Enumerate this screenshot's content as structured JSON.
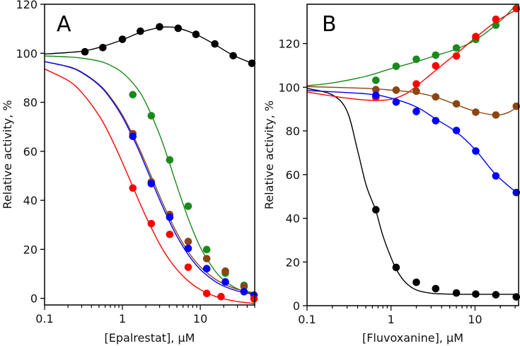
{
  "chart_data": [
    {
      "type": "scatter",
      "panel_label": "A",
      "xlabel": "[Epalrestat], µM",
      "ylabel": "Relative activity, %",
      "xscale": "log",
      "xlim": [
        0.1,
        50
      ],
      "ylim": [
        -2.7,
        120
      ],
      "xticks": [
        0.1,
        1,
        10
      ],
      "xtick_labels": [
        "0.1",
        "1",
        "10"
      ],
      "yticks": [
        0,
        20,
        40,
        60,
        80,
        100,
        120
      ],
      "ytick_labels": [
        "0",
        "20",
        "40",
        "60",
        "80",
        "100",
        "120"
      ],
      "grid": false,
      "series": [
        {
          "name": "black",
          "color": "#000000",
          "points": {
            "x": [
              0.33,
              0.56,
              1.0,
              1.7,
              3.0,
              5.2,
              8.8,
              15.4,
              26.5,
              46
            ],
            "y": [
              100.6,
              102.3,
              105.7,
              109.0,
              110.8,
              110.2,
              107.7,
              103.8,
              99.0,
              95.9
            ]
          },
          "fit": {
            "x": [
              0.1,
              0.2,
              0.33,
              0.56,
              1,
              1.7,
              3,
              4,
              5.2,
              8.8,
              15,
              26,
              50
            ],
            "y": [
              99.7,
              100.3,
              101.0,
              102.8,
              105.5,
              108.5,
              110.5,
              110.7,
              110.3,
              107.7,
              103.8,
              99.3,
              95.5
            ]
          }
        },
        {
          "name": "green",
          "color": "#1a8a1a",
          "points": {
            "x": [
              1.36,
              2.35,
              4.05,
              7.0,
              12.1,
              21,
              36.5
            ],
            "y": [
              83.1,
              74.5,
              56.5,
              37.6,
              19.9,
              10.3,
              5.3
            ]
          },
          "fit": {
            "x": [
              0.1,
              0.2,
              0.3,
              0.5,
              0.7,
              1,
              1.5,
              2,
              3,
              4,
              5,
              7,
              10,
              15,
              20,
              30,
              50
            ],
            "y": [
              98.9,
              98.5,
              98.0,
              96.8,
              95.1,
              92.1,
              86.2,
              79.7,
              66.8,
              55.4,
              46.0,
              32.6,
              20.9,
              11.8,
              7.5,
              3.9,
              1.7
            ]
          }
        },
        {
          "name": "brown",
          "color": "#8b4513",
          "points": {
            "x": [
              1.36,
              2.35,
              4.05,
              7.0,
              12.1,
              21,
              36.5
            ],
            "y": [
              67.2,
              47.5,
              34.2,
              23.2,
              16.2,
              11.1,
              4.8
            ]
          },
          "fit": {
            "x": [
              0.1,
              0.2,
              0.3,
              0.5,
              0.7,
              1,
              1.5,
              2,
              3,
              4,
              5,
              7,
              10,
              15,
              20,
              30,
              50
            ],
            "y": [
              96.6,
              94.6,
              92.3,
              87.3,
              82.1,
              74.8,
              63.9,
              55.0,
              41.8,
              33.0,
              26.8,
              19.0,
              12.9,
              8.2,
              5.9,
              3.7,
              2.2
            ]
          }
        },
        {
          "name": "blue",
          "color": "#0000ff",
          "points": {
            "x": [
              1.36,
              2.35,
              4.05,
              7.0,
              12.1,
              21,
              36.5,
              49
            ],
            "y": [
              66.1,
              46.8,
              33.1,
              20.4,
              12.1,
              6.7,
              2.7,
              1.3
            ]
          },
          "fit": {
            "x": [
              0.1,
              0.2,
              0.3,
              0.5,
              0.7,
              1,
              1.5,
              2,
              3,
              4,
              5,
              7,
              10,
              15,
              20,
              30,
              50
            ],
            "y": [
              96.6,
              94.5,
              92.1,
              87.0,
              81.6,
              74.0,
              62.8,
              53.6,
              40.3,
              31.5,
              25.4,
              17.8,
              11.8,
              7.2,
              5.0,
              3.0,
              1.5
            ]
          }
        },
        {
          "name": "red",
          "color": "#ff0000",
          "points": {
            "x": [
              1.36,
              2.35,
              4.05,
              7.0,
              12.1,
              18.5,
              49
            ],
            "y": [
              45.0,
              30.5,
              26.1,
              12.7,
              2.0,
              0.7,
              -0.2
            ]
          },
          "fit": {
            "x": [
              0.1,
              0.2,
              0.3,
              0.5,
              0.7,
              1,
              1.5,
              2,
              3,
              4,
              5,
              7,
              10,
              15,
              20,
              30,
              50
            ],
            "y": [
              93.6,
              88.9,
              84.0,
              74.6,
              66.1,
              55.4,
              42.4,
              33.4,
              22.2,
              15.8,
              11.8,
              7.1,
              3.6,
              1.0,
              -0.2,
              -1.3,
              -2.1
            ]
          }
        }
      ]
    },
    {
      "type": "scatter",
      "panel_label": "B",
      "xlabel": "[Fluvoxanine], µM",
      "ylabel": "Relative activity, %",
      "xscale": "log",
      "xlim": [
        0.1,
        33
      ],
      "ylim": [
        0,
        138
      ],
      "xticks": [
        0.1,
        1,
        10
      ],
      "xtick_labels": [
        "0.1",
        "1",
        "10"
      ],
      "yticks": [
        0,
        20,
        40,
        60,
        80,
        100,
        120
      ],
      "ytick_labels": [
        "0",
        "20",
        "40",
        "60",
        "80",
        "100",
        "120"
      ],
      "grid": false,
      "series": [
        {
          "name": "black",
          "color": "#000000",
          "points": {
            "x": [
              0.66,
              1.15,
              2.0,
              3.4,
              6.0,
              10.2,
              17.7,
              31
            ],
            "y": [
              43.9,
              17.5,
              10.7,
              7.8,
              5.8,
              5.3,
              5.0,
              4.0
            ]
          },
          "fit": {
            "x": [
              0.1,
              0.2,
              0.3,
              0.4,
              0.5,
              0.6,
              0.66,
              0.8,
              1,
              1.2,
              1.5,
              2,
              3,
              5,
              10,
              33
            ],
            "y": [
              99.5,
              96.5,
              89.0,
              71.0,
              55.8,
              47.5,
              43.5,
              32.0,
              22.0,
              15.5,
              10.5,
              7.2,
              5.7,
              5.3,
              5.2,
              5.2
            ]
          }
        },
        {
          "name": "green",
          "color": "#1a8a1a",
          "points": {
            "x": [
              0.66,
              1.15,
              2.0,
              3.4,
              6.0,
              10.2,
              17.7
            ],
            "y": [
              103.2,
              109.6,
              112.8,
              114.7,
              118.0,
              121.9,
              128.4
            ]
          },
          "fit": {
            "x": [
              0.1,
              0.2,
              0.5,
              1,
              2,
              3.4,
              6,
              10,
              17.7,
              25,
              33
            ],
            "y": [
              100.7,
              102.0,
              105.0,
              108.5,
              111.7,
              114.5,
              117.5,
              121.5,
              128.5,
              134.0,
              139.0
            ]
          }
        },
        {
          "name": "red",
          "color": "#ff0000",
          "points": {
            "x": [
              0.66,
              2.0,
              3.4,
              6.0,
              10.2,
              17.7,
              31
            ],
            "y": [
              95.4,
              101.5,
              109.8,
              114.3,
              123.2,
              131.1,
              136.0
            ]
          },
          "fit": {
            "x": [
              0.1,
              0.3,
              0.6,
              1,
              1.5,
              2,
              3,
              5,
              7,
              10,
              17.7,
              33
            ],
            "y": [
              97.8,
              95.0,
              94.0,
              94.5,
              97.0,
              100.5,
              106.0,
              113.0,
              117.5,
              122.5,
              130.0,
              136.0
            ]
          }
        },
        {
          "name": "brown",
          "color": "#8b4513",
          "points": {
            "x": [
              0.66,
              1.15,
              2.0,
              3.4,
              6.0,
              10.2,
              17.7,
              31
            ],
            "y": [
              98.9,
              98.7,
              98.2,
              95.6,
              92.4,
              88.6,
              87.3,
              91.3
            ]
          },
          "fit": {
            "x": [
              0.1,
              0.5,
              1,
              2,
              3.4,
              6,
              10,
              17.7,
              25,
              33
            ],
            "y": [
              100.3,
              99.5,
              98.7,
              97.5,
              95.5,
              92.0,
              89.0,
              87.3,
              88.5,
              91.5
            ]
          }
        },
        {
          "name": "blue",
          "color": "#0000ff",
          "points": {
            "x": [
              0.66,
              1.15,
              2.0,
              3.4,
              6.0,
              10.2,
              17.7,
              31
            ],
            "y": [
              96.3,
              93.2,
              88.9,
              84.7,
              80.2,
              70.8,
              59.4,
              51.8
            ]
          },
          "fit": {
            "x": [
              0.1,
              0.5,
              1,
              2,
              3.4,
              6,
              10,
              17.7,
              33
            ],
            "y": [
              98.5,
              97.0,
              95.0,
              91.0,
              85.5,
              79.5,
              71.5,
              60.0,
              51.0
            ]
          }
        }
      ]
    }
  ]
}
